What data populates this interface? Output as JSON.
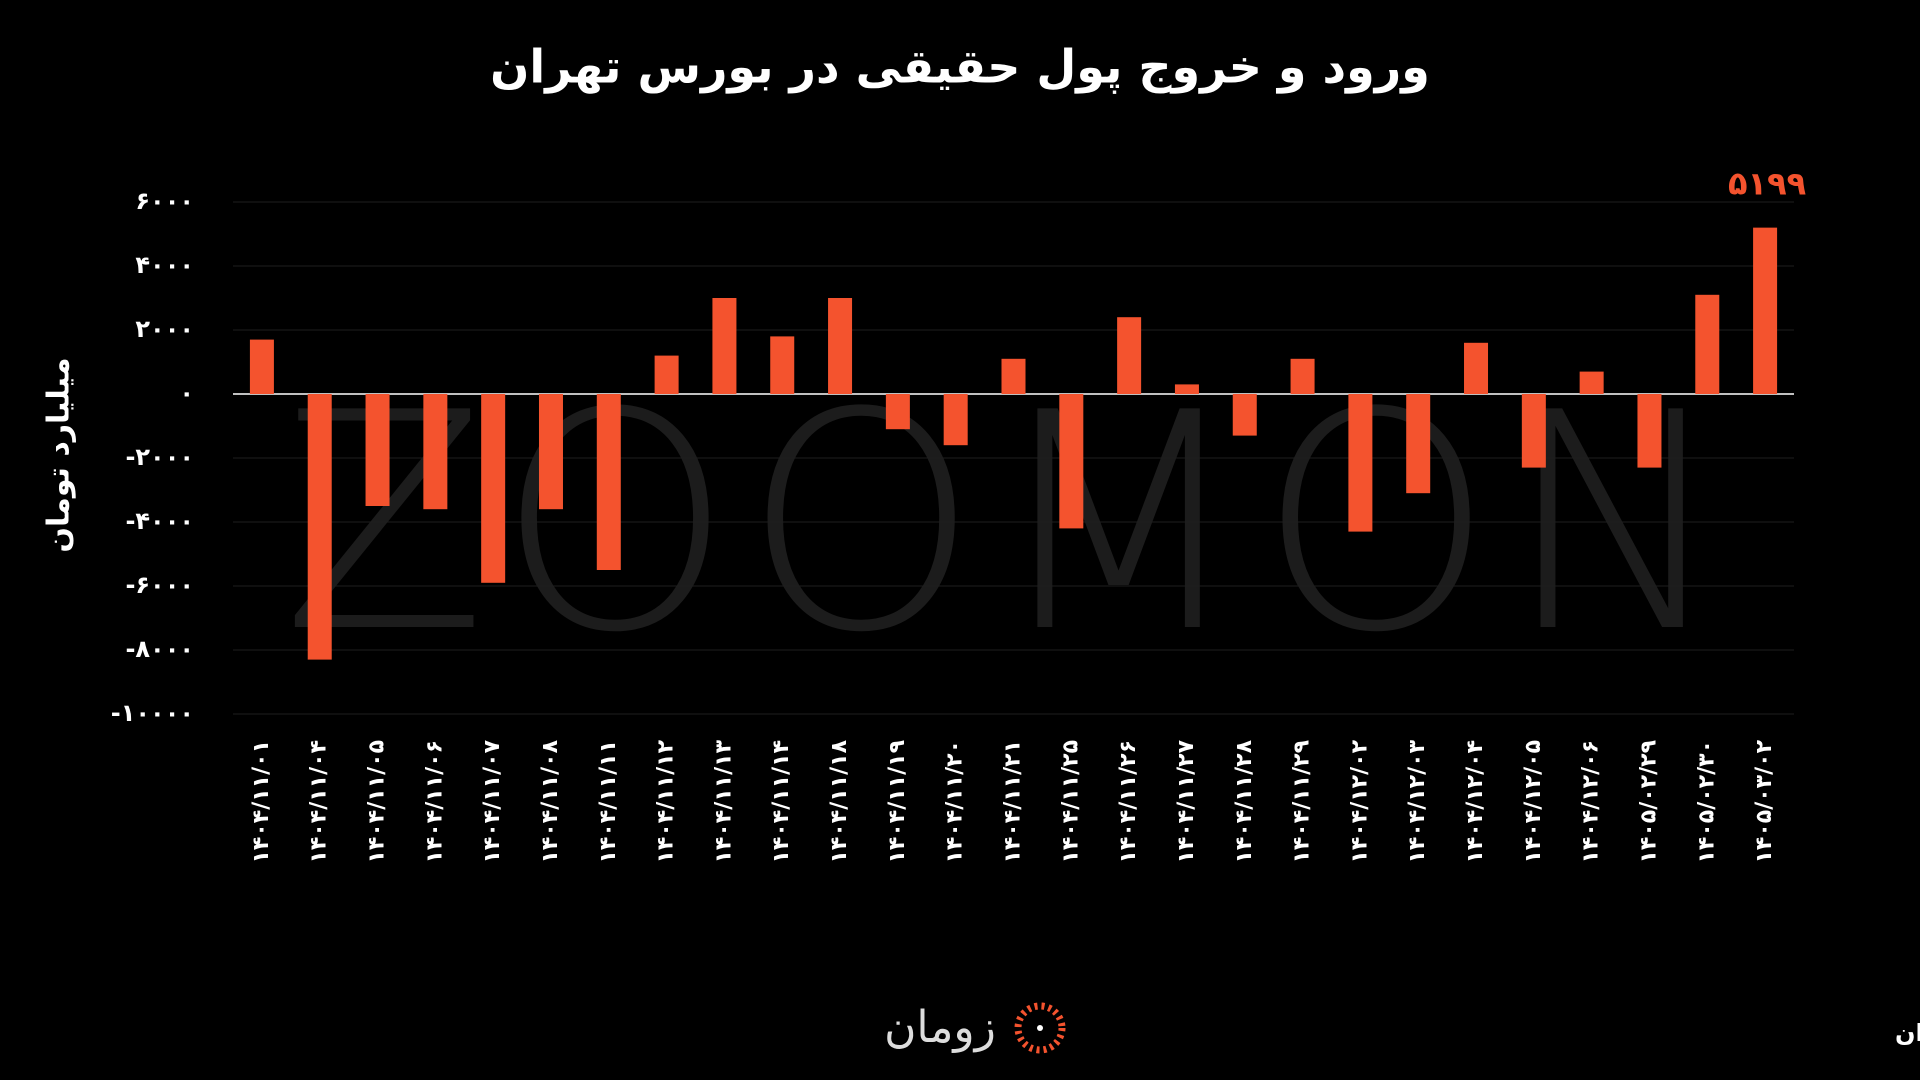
{
  "chart_data": {
    "type": "bar",
    "title": "ورود و خروج پول حقیقی در بورس تهران",
    "y_label": "میلیارد تومان",
    "watermark": "ZOOMON",
    "brand": "زومان",
    "source": "منبع: بورس تهران",
    "categories": [
      "۱۴۰۴/۱۱/۰۱",
      "۱۴۰۴/۱۱/۰۴",
      "۱۴۰۴/۱۱/۰۵",
      "۱۴۰۴/۱۱/۰۶",
      "۱۴۰۴/۱۱/۰۷",
      "۱۴۰۴/۱۱/۰۸",
      "۱۴۰۴/۱۱/۱۱",
      "۱۴۰۴/۱۱/۱۲",
      "۱۴۰۴/۱۱/۱۳",
      "۱۴۰۴/۱۱/۱۴",
      "۱۴۰۴/۱۱/۱۸",
      "۱۴۰۴/۱۱/۱۹",
      "۱۴۰۴/۱۱/۲۰",
      "۱۴۰۴/۱۱/۲۱",
      "۱۴۰۴/۱۱/۲۵",
      "۱۴۰۴/۱۱/۲۶",
      "۱۴۰۴/۱۱/۲۷",
      "۱۴۰۴/۱۱/۲۸",
      "۱۴۰۴/۱۱/۲۹",
      "۱۴۰۴/۱۲/۰۲",
      "۱۴۰۴/۱۲/۰۳",
      "۱۴۰۴/۱۲/۰۴",
      "۱۴۰۴/۱۲/۰۵",
      "۱۴۰۴/۱۲/۰۶",
      "۱۴۰۵/۰۲/۲۹",
      "۱۴۰۵/۰۲/۳۰",
      "۱۴۰۵/۰۳/۰۲"
    ],
    "values": [
      1700,
      -8300,
      -3500,
      -3600,
      -5900,
      -3600,
      -5500,
      1200,
      3000,
      1800,
      3000,
      -1100,
      -1600,
      1100,
      -4200,
      2400,
      300,
      -1300,
      1100,
      -4300,
      -3100,
      1600,
      -2300,
      700,
      -2300,
      3100,
      5199
    ],
    "value_labels": [
      null,
      null,
      null,
      null,
      null,
      null,
      null,
      null,
      null,
      null,
      null,
      null,
      null,
      null,
      null,
      null,
      null,
      null,
      null,
      null,
      null,
      null,
      null,
      null,
      null,
      null,
      "۵۱۹۹"
    ],
    "color": "#f4532e",
    "ylim": [
      -10000,
      6000
    ],
    "yticks": [
      {
        "value": 6000,
        "label": "۶۰۰۰"
      },
      {
        "value": 4000,
        "label": "۴۰۰۰"
      },
      {
        "value": 2000,
        "label": "۲۰۰۰"
      },
      {
        "value": 0,
        "label": "۰"
      },
      {
        "value": -2000,
        "label": "-۲۰۰۰"
      },
      {
        "value": -4000,
        "label": "-۴۰۰۰"
      },
      {
        "value": -6000,
        "label": "-۶۰۰۰"
      },
      {
        "value": -8000,
        "label": "-۸۰۰۰"
      },
      {
        "value": -10000,
        "label": "-۱۰۰۰۰"
      }
    ],
    "grid": true
  }
}
